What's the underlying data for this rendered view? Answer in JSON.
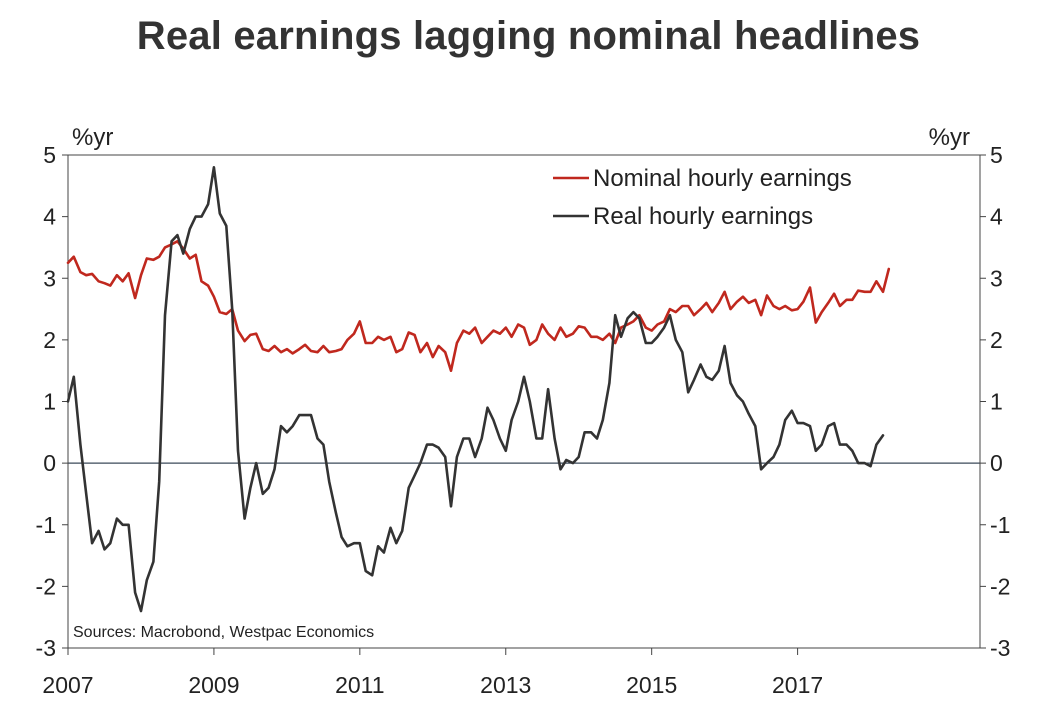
{
  "chart_data": {
    "type": "line",
    "title": "Real earnings lagging nominal headlines",
    "ylabel_left": "%yr",
    "ylabel_right": "%yr",
    "ylim": [
      -3,
      5
    ],
    "yticks": [
      5,
      4,
      3,
      2,
      1,
      0,
      -1,
      -2,
      -3
    ],
    "xlim": [
      2007,
      2019.5
    ],
    "xticks": [
      "2007",
      "2009",
      "2011",
      "2013",
      "2015",
      "2017"
    ],
    "source": "Sources: Macrobond, Westpac Economics",
    "zero_line": true,
    "legend_position": "top-right",
    "series": [
      {
        "name": "Nominal hourly earnings",
        "color": "#c0281e",
        "points": [
          [
            2007.0,
            3.25
          ],
          [
            2007.08,
            3.35
          ],
          [
            2007.17,
            3.1
          ],
          [
            2007.25,
            3.05
          ],
          [
            2007.33,
            3.07
          ],
          [
            2007.42,
            2.95
          ],
          [
            2007.5,
            2.92
          ],
          [
            2007.58,
            2.88
          ],
          [
            2007.67,
            3.05
          ],
          [
            2007.75,
            2.95
          ],
          [
            2007.83,
            3.08
          ],
          [
            2007.92,
            2.68
          ],
          [
            2008.0,
            3.05
          ],
          [
            2008.08,
            3.32
          ],
          [
            2008.17,
            3.3
          ],
          [
            2008.25,
            3.35
          ],
          [
            2008.33,
            3.5
          ],
          [
            2008.42,
            3.55
          ],
          [
            2008.5,
            3.6
          ],
          [
            2008.58,
            3.48
          ],
          [
            2008.67,
            3.32
          ],
          [
            2008.75,
            3.38
          ],
          [
            2008.83,
            2.95
          ],
          [
            2008.92,
            2.88
          ],
          [
            2009.0,
            2.7
          ],
          [
            2009.08,
            2.45
          ],
          [
            2009.17,
            2.42
          ],
          [
            2009.25,
            2.5
          ],
          [
            2009.33,
            2.15
          ],
          [
            2009.42,
            1.98
          ],
          [
            2009.5,
            2.08
          ],
          [
            2009.58,
            2.1
          ],
          [
            2009.67,
            1.85
          ],
          [
            2009.75,
            1.82
          ],
          [
            2009.83,
            1.9
          ],
          [
            2009.92,
            1.8
          ],
          [
            2010.0,
            1.85
          ],
          [
            2010.08,
            1.78
          ],
          [
            2010.17,
            1.85
          ],
          [
            2010.25,
            1.92
          ],
          [
            2010.33,
            1.82
          ],
          [
            2010.42,
            1.8
          ],
          [
            2010.5,
            1.9
          ],
          [
            2010.58,
            1.8
          ],
          [
            2010.67,
            1.82
          ],
          [
            2010.75,
            1.85
          ],
          [
            2010.83,
            2.0
          ],
          [
            2010.92,
            2.1
          ],
          [
            2011.0,
            2.3
          ],
          [
            2011.08,
            1.95
          ],
          [
            2011.17,
            1.95
          ],
          [
            2011.25,
            2.05
          ],
          [
            2011.33,
            2.0
          ],
          [
            2011.42,
            2.05
          ],
          [
            2011.5,
            1.8
          ],
          [
            2011.58,
            1.85
          ],
          [
            2011.67,
            2.12
          ],
          [
            2011.75,
            2.08
          ],
          [
            2011.83,
            1.8
          ],
          [
            2011.92,
            1.95
          ],
          [
            2012.0,
            1.72
          ],
          [
            2012.08,
            1.9
          ],
          [
            2012.17,
            1.8
          ],
          [
            2012.25,
            1.5
          ],
          [
            2012.33,
            1.95
          ],
          [
            2012.42,
            2.15
          ],
          [
            2012.5,
            2.1
          ],
          [
            2012.58,
            2.2
          ],
          [
            2012.67,
            1.95
          ],
          [
            2012.75,
            2.05
          ],
          [
            2012.83,
            2.15
          ],
          [
            2012.92,
            2.1
          ],
          [
            2013.0,
            2.2
          ],
          [
            2013.08,
            2.05
          ],
          [
            2013.17,
            2.25
          ],
          [
            2013.25,
            2.2
          ],
          [
            2013.33,
            1.92
          ],
          [
            2013.42,
            2.0
          ],
          [
            2013.5,
            2.25
          ],
          [
            2013.58,
            2.1
          ],
          [
            2013.67,
            2.0
          ],
          [
            2013.75,
            2.2
          ],
          [
            2013.83,
            2.05
          ],
          [
            2013.92,
            2.1
          ],
          [
            2014.0,
            2.22
          ],
          [
            2014.08,
            2.2
          ],
          [
            2014.17,
            2.05
          ],
          [
            2014.25,
            2.05
          ],
          [
            2014.33,
            2.0
          ],
          [
            2014.42,
            2.1
          ],
          [
            2014.5,
            1.95
          ],
          [
            2014.58,
            2.2
          ],
          [
            2014.67,
            2.25
          ],
          [
            2014.75,
            2.3
          ],
          [
            2014.83,
            2.4
          ],
          [
            2014.92,
            2.2
          ],
          [
            2015.0,
            2.15
          ],
          [
            2015.08,
            2.25
          ],
          [
            2015.17,
            2.3
          ],
          [
            2015.25,
            2.5
          ],
          [
            2015.33,
            2.45
          ],
          [
            2015.42,
            2.55
          ],
          [
            2015.5,
            2.55
          ],
          [
            2015.58,
            2.4
          ],
          [
            2015.67,
            2.5
          ],
          [
            2015.75,
            2.6
          ],
          [
            2015.83,
            2.45
          ],
          [
            2015.92,
            2.6
          ],
          [
            2016.0,
            2.78
          ],
          [
            2016.08,
            2.5
          ],
          [
            2016.17,
            2.62
          ],
          [
            2016.25,
            2.7
          ],
          [
            2016.33,
            2.6
          ],
          [
            2016.42,
            2.65
          ],
          [
            2016.5,
            2.4
          ],
          [
            2016.58,
            2.72
          ],
          [
            2016.67,
            2.55
          ],
          [
            2016.75,
            2.5
          ],
          [
            2016.83,
            2.55
          ],
          [
            2016.92,
            2.48
          ],
          [
            2017.0,
            2.5
          ],
          [
            2017.08,
            2.62
          ],
          [
            2017.17,
            2.85
          ],
          [
            2017.25,
            2.28
          ],
          [
            2017.33,
            2.45
          ],
          [
            2017.42,
            2.6
          ],
          [
            2017.5,
            2.75
          ],
          [
            2017.58,
            2.55
          ],
          [
            2017.67,
            2.65
          ],
          [
            2017.75,
            2.65
          ],
          [
            2017.83,
            2.8
          ],
          [
            2017.92,
            2.78
          ],
          [
            2018.0,
            2.78
          ],
          [
            2018.08,
            2.95
          ],
          [
            2018.17,
            2.78
          ],
          [
            2018.25,
            3.15
          ]
        ]
      },
      {
        "name": "Real hourly earnings",
        "color": "#333333",
        "points": [
          [
            2007.0,
            1.0
          ],
          [
            2007.08,
            1.4
          ],
          [
            2007.17,
            0.3
          ],
          [
            2007.25,
            -0.5
          ],
          [
            2007.33,
            -1.3
          ],
          [
            2007.42,
            -1.1
          ],
          [
            2007.5,
            -1.4
          ],
          [
            2007.58,
            -1.3
          ],
          [
            2007.67,
            -0.9
          ],
          [
            2007.75,
            -1.0
          ],
          [
            2007.83,
            -1.0
          ],
          [
            2007.92,
            -2.1
          ],
          [
            2008.0,
            -2.4
          ],
          [
            2008.08,
            -1.9
          ],
          [
            2008.17,
            -1.6
          ],
          [
            2008.25,
            -0.3
          ],
          [
            2008.33,
            2.4
          ],
          [
            2008.42,
            3.6
          ],
          [
            2008.5,
            3.7
          ],
          [
            2008.58,
            3.4
          ],
          [
            2008.67,
            3.8
          ],
          [
            2008.75,
            4.0
          ],
          [
            2008.83,
            4.0
          ],
          [
            2008.92,
            4.2
          ],
          [
            2009.0,
            4.8
          ],
          [
            2009.08,
            4.05
          ],
          [
            2009.17,
            3.85
          ],
          [
            2009.25,
            2.5
          ],
          [
            2009.33,
            0.2
          ],
          [
            2009.42,
            -0.9
          ],
          [
            2009.5,
            -0.4
          ],
          [
            2009.58,
            0.0
          ],
          [
            2009.67,
            -0.5
          ],
          [
            2009.75,
            -0.4
          ],
          [
            2009.83,
            -0.1
          ],
          [
            2009.92,
            0.6
          ],
          [
            2010.0,
            0.5
          ],
          [
            2010.08,
            0.6
          ],
          [
            2010.17,
            0.78
          ],
          [
            2010.25,
            0.78
          ],
          [
            2010.33,
            0.78
          ],
          [
            2010.42,
            0.4
          ],
          [
            2010.5,
            0.3
          ],
          [
            2010.58,
            -0.3
          ],
          [
            2010.67,
            -0.8
          ],
          [
            2010.75,
            -1.2
          ],
          [
            2010.83,
            -1.35
          ],
          [
            2010.92,
            -1.3
          ],
          [
            2011.0,
            -1.3
          ],
          [
            2011.08,
            -1.75
          ],
          [
            2011.17,
            -1.82
          ],
          [
            2011.25,
            -1.35
          ],
          [
            2011.33,
            -1.45
          ],
          [
            2011.42,
            -1.05
          ],
          [
            2011.5,
            -1.3
          ],
          [
            2011.58,
            -1.1
          ],
          [
            2011.67,
            -0.4
          ],
          [
            2011.75,
            -0.2
          ],
          [
            2011.83,
            0.0
          ],
          [
            2011.92,
            0.3
          ],
          [
            2012.0,
            0.3
          ],
          [
            2012.08,
            0.25
          ],
          [
            2012.17,
            0.1
          ],
          [
            2012.25,
            -0.7
          ],
          [
            2012.33,
            0.1
          ],
          [
            2012.42,
            0.4
          ],
          [
            2012.5,
            0.4
          ],
          [
            2012.58,
            0.1
          ],
          [
            2012.67,
            0.4
          ],
          [
            2012.75,
            0.9
          ],
          [
            2012.83,
            0.7
          ],
          [
            2012.92,
            0.4
          ],
          [
            2013.0,
            0.2
          ],
          [
            2013.08,
            0.7
          ],
          [
            2013.17,
            1.0
          ],
          [
            2013.25,
            1.4
          ],
          [
            2013.33,
            1.0
          ],
          [
            2013.42,
            0.4
          ],
          [
            2013.5,
            0.4
          ],
          [
            2013.58,
            1.2
          ],
          [
            2013.67,
            0.4
          ],
          [
            2013.75,
            -0.1
          ],
          [
            2013.83,
            0.05
          ],
          [
            2013.92,
            0.0
          ],
          [
            2014.0,
            0.1
          ],
          [
            2014.08,
            0.5
          ],
          [
            2014.17,
            0.5
          ],
          [
            2014.25,
            0.4
          ],
          [
            2014.33,
            0.7
          ],
          [
            2014.42,
            1.3
          ],
          [
            2014.5,
            2.4
          ],
          [
            2014.58,
            2.05
          ],
          [
            2014.67,
            2.35
          ],
          [
            2014.75,
            2.45
          ],
          [
            2014.83,
            2.35
          ],
          [
            2014.92,
            1.95
          ],
          [
            2015.0,
            1.95
          ],
          [
            2015.08,
            2.05
          ],
          [
            2015.17,
            2.2
          ],
          [
            2015.25,
            2.4
          ],
          [
            2015.33,
            2.0
          ],
          [
            2015.42,
            1.8
          ],
          [
            2015.5,
            1.15
          ],
          [
            2015.58,
            1.35
          ],
          [
            2015.67,
            1.6
          ],
          [
            2015.75,
            1.4
          ],
          [
            2015.83,
            1.35
          ],
          [
            2015.92,
            1.5
          ],
          [
            2016.0,
            1.9
          ],
          [
            2016.08,
            1.3
          ],
          [
            2016.17,
            1.1
          ],
          [
            2016.25,
            1.0
          ],
          [
            2016.33,
            0.8
          ],
          [
            2016.42,
            0.6
          ],
          [
            2016.5,
            -0.1
          ],
          [
            2016.58,
            0.0
          ],
          [
            2016.67,
            0.1
          ],
          [
            2016.75,
            0.3
          ],
          [
            2016.83,
            0.7
          ],
          [
            2016.92,
            0.85
          ],
          [
            2017.0,
            0.65
          ],
          [
            2017.08,
            0.65
          ],
          [
            2017.17,
            0.6
          ],
          [
            2017.25,
            0.2
          ],
          [
            2017.33,
            0.3
          ],
          [
            2017.42,
            0.6
          ],
          [
            2017.5,
            0.65
          ],
          [
            2017.58,
            0.3
          ],
          [
            2017.67,
            0.3
          ],
          [
            2017.75,
            0.2
          ],
          [
            2017.83,
            0.0
          ],
          [
            2017.92,
            0.0
          ],
          [
            2018.0,
            -0.05
          ],
          [
            2018.08,
            0.3
          ],
          [
            2018.17,
            0.45
          ]
        ]
      }
    ]
  }
}
